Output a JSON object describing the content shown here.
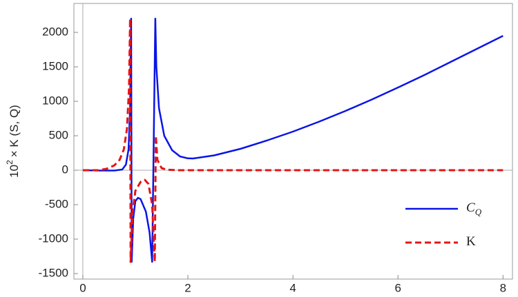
{
  "chart_data": {
    "type": "line",
    "ylabel_base": "10",
    "ylabel_exp": "2",
    "ylabel_rest": "× K (S, Q)",
    "xlim": [
      -0.17,
      8.18
    ],
    "ylim": [
      -1580,
      2420
    ],
    "xticks": [
      0,
      2,
      4,
      6,
      8
    ],
    "yticks": [
      -1500,
      -1000,
      -500,
      0,
      500,
      1000,
      1500,
      2000
    ],
    "legend": "lower right",
    "series": [
      {
        "name": "C",
        "subscript": "Q",
        "color": "#0a14e6",
        "dash": false,
        "x": [
          0,
          0.3,
          0.6,
          0.75,
          0.82,
          0.87,
          0.9,
          0.92,
          0.93,
          0.96,
          1.0,
          1.05,
          1.1,
          1.2,
          1.27,
          1.32,
          1.38,
          1.4,
          1.45,
          1.55,
          1.7,
          1.85,
          2.0,
          2.1,
          2.5,
          3,
          3.5,
          4,
          4.5,
          5,
          5.5,
          6,
          6.5,
          7,
          7.5,
          8
        ],
        "values": [
          0,
          -5,
          -5,
          10,
          80,
          300,
          900,
          2200,
          -1330,
          -700,
          -450,
          -400,
          -420,
          -600,
          -900,
          -1330,
          2200,
          1500,
          900,
          500,
          290,
          200,
          172,
          170,
          215,
          310,
          430,
          560,
          705,
          860,
          1025,
          1200,
          1380,
          1570,
          1760,
          1950
        ]
      },
      {
        "name": "K",
        "color": "#e61414",
        "dash": true,
        "x": [
          0,
          0.3,
          0.45,
          0.6,
          0.7,
          0.78,
          0.84,
          0.88,
          0.9,
          0.91,
          0.95,
          1.0,
          1.1,
          1.18,
          1.25,
          1.32,
          1.37,
          1.39,
          1.42,
          1.5,
          1.6,
          1.8,
          8
        ],
        "values": [
          0,
          0,
          20,
          70,
          150,
          300,
          600,
          1200,
          2200,
          -1330,
          -600,
          -300,
          -170,
          -140,
          -200,
          -500,
          -1330,
          500,
          150,
          30,
          8,
          0,
          0
        ]
      }
    ]
  }
}
